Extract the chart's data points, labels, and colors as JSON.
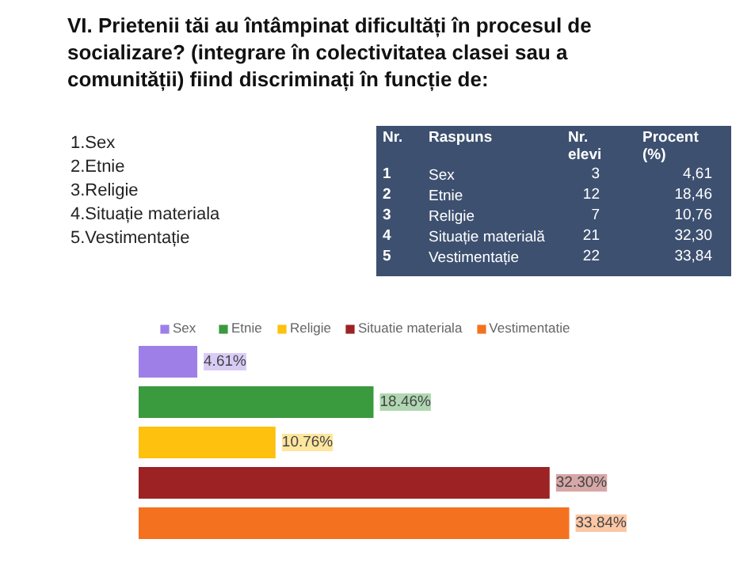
{
  "chart_data": {
    "type": "bar",
    "orientation": "horizontal",
    "title": "VI. Prietenii tăi au întâmpinat dificultăți în procesul de socializare? (integrare în colectivitatea clasei sau a comunității) fiind discriminați în funcție de:",
    "categories": [
      null,
      null,
      null,
      null,
      null
    ],
    "series": [
      {
        "name": "Sex",
        "color": "#9e7fe8",
        "values": [
          4.61,
          null,
          null,
          null,
          null
        ],
        "value_labels": [
          "4.61%",
          null,
          null,
          null,
          null
        ]
      },
      {
        "name": "Etnie",
        "color": "#3a9a3e",
        "values": [
          null,
          18.46,
          null,
          null,
          null
        ],
        "value_labels": [
          null,
          "18.46%",
          null,
          null,
          null
        ]
      },
      {
        "name": "Religie",
        "color": "#fdc10e",
        "values": [
          null,
          null,
          10.76,
          null,
          null
        ],
        "value_labels": [
          null,
          null,
          "10.76%",
          null,
          null
        ]
      },
      {
        "name": "Situatie materiala",
        "color": "#9c2224",
        "values": [
          null,
          null,
          null,
          32.3,
          null
        ],
        "value_labels": [
          null,
          null,
          null,
          "32.30%",
          null
        ]
      },
      {
        "name": "Vestimentatie",
        "color": "#f4721f",
        "values": [
          null,
          null,
          null,
          null,
          33.84
        ],
        "value_labels": [
          null,
          null,
          null,
          null,
          "33.84%"
        ]
      }
    ],
    "legend": "top",
    "grid": false,
    "stacked": true,
    "annotations": [
      "1.Sex",
      "2.Etnie",
      "3.Religie",
      "4.Situație materiala",
      "5.Vestimentație",
      "Nr.",
      "Raspuns",
      "Nr. elevi",
      "Procent (%)",
      "1",
      "Sex",
      "3",
      "4,61",
      "2",
      "Etnie",
      "12",
      "18,46",
      "3",
      "Religie",
      "7",
      "10,76",
      "4",
      "Situație materială",
      "21",
      "32,30",
      "5",
      "Vestimentație",
      "22",
      "33,84"
    ]
  }
}
